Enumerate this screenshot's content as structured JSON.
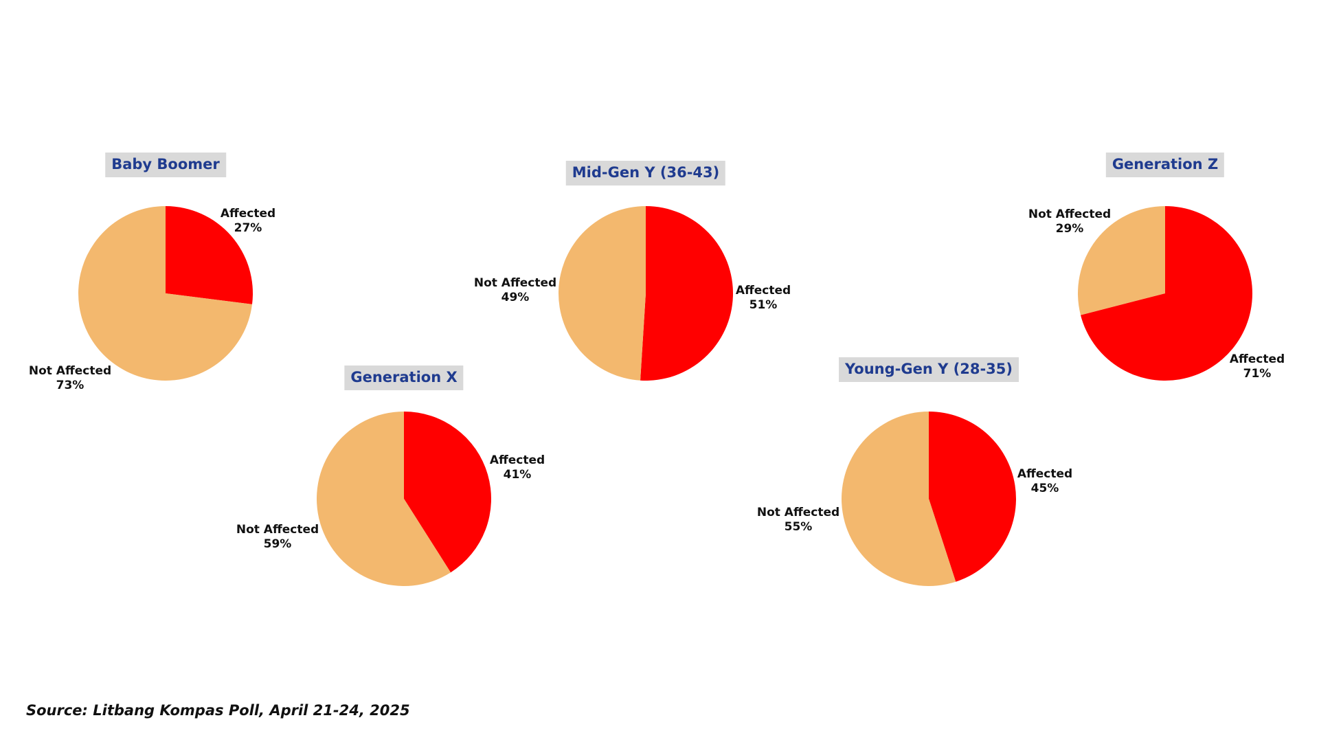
{
  "colors": {
    "affected": "#ff0000",
    "not_affected": "#f3b86e",
    "title_bg": "#d9d9d9",
    "title_text": "#1f3b8f"
  },
  "chart_data": [
    {
      "type": "pie",
      "title": "Baby Boomer",
      "slices": [
        {
          "label": "Affected",
          "value": 27,
          "display": "27%",
          "color_key": "affected"
        },
        {
          "label": "Not Affected",
          "value": 73,
          "display": "73%",
          "color_key": "not_affected"
        }
      ]
    },
    {
      "type": "pie",
      "title": "Generation X",
      "slices": [
        {
          "label": "Affected",
          "value": 41,
          "display": "41%",
          "color_key": "affected"
        },
        {
          "label": "Not Affected",
          "value": 59,
          "display": "59%",
          "color_key": "not_affected"
        }
      ]
    },
    {
      "type": "pie",
      "title": "Mid-Gen Y (36-43)",
      "slices": [
        {
          "label": "Affected",
          "value": 51,
          "display": "51%",
          "color_key": "affected"
        },
        {
          "label": "Not Affected",
          "value": 49,
          "display": "49%",
          "color_key": "not_affected"
        }
      ]
    },
    {
      "type": "pie",
      "title": "Young-Gen Y (28-35)",
      "slices": [
        {
          "label": "Affected",
          "value": 45,
          "display": "45%",
          "color_key": "affected"
        },
        {
          "label": "Not Affected",
          "value": 55,
          "display": "55%",
          "color_key": "not_affected"
        }
      ]
    },
    {
      "type": "pie",
      "title": "Generation Z",
      "slices": [
        {
          "label": "Affected",
          "value": 71,
          "display": "71%",
          "color_key": "affected"
        },
        {
          "label": "Not Affected",
          "value": 29,
          "display": "29%",
          "color_key": "not_affected"
        }
      ]
    }
  ],
  "source": "Source: Litbang Kompas Poll, April 21-24, 2025"
}
